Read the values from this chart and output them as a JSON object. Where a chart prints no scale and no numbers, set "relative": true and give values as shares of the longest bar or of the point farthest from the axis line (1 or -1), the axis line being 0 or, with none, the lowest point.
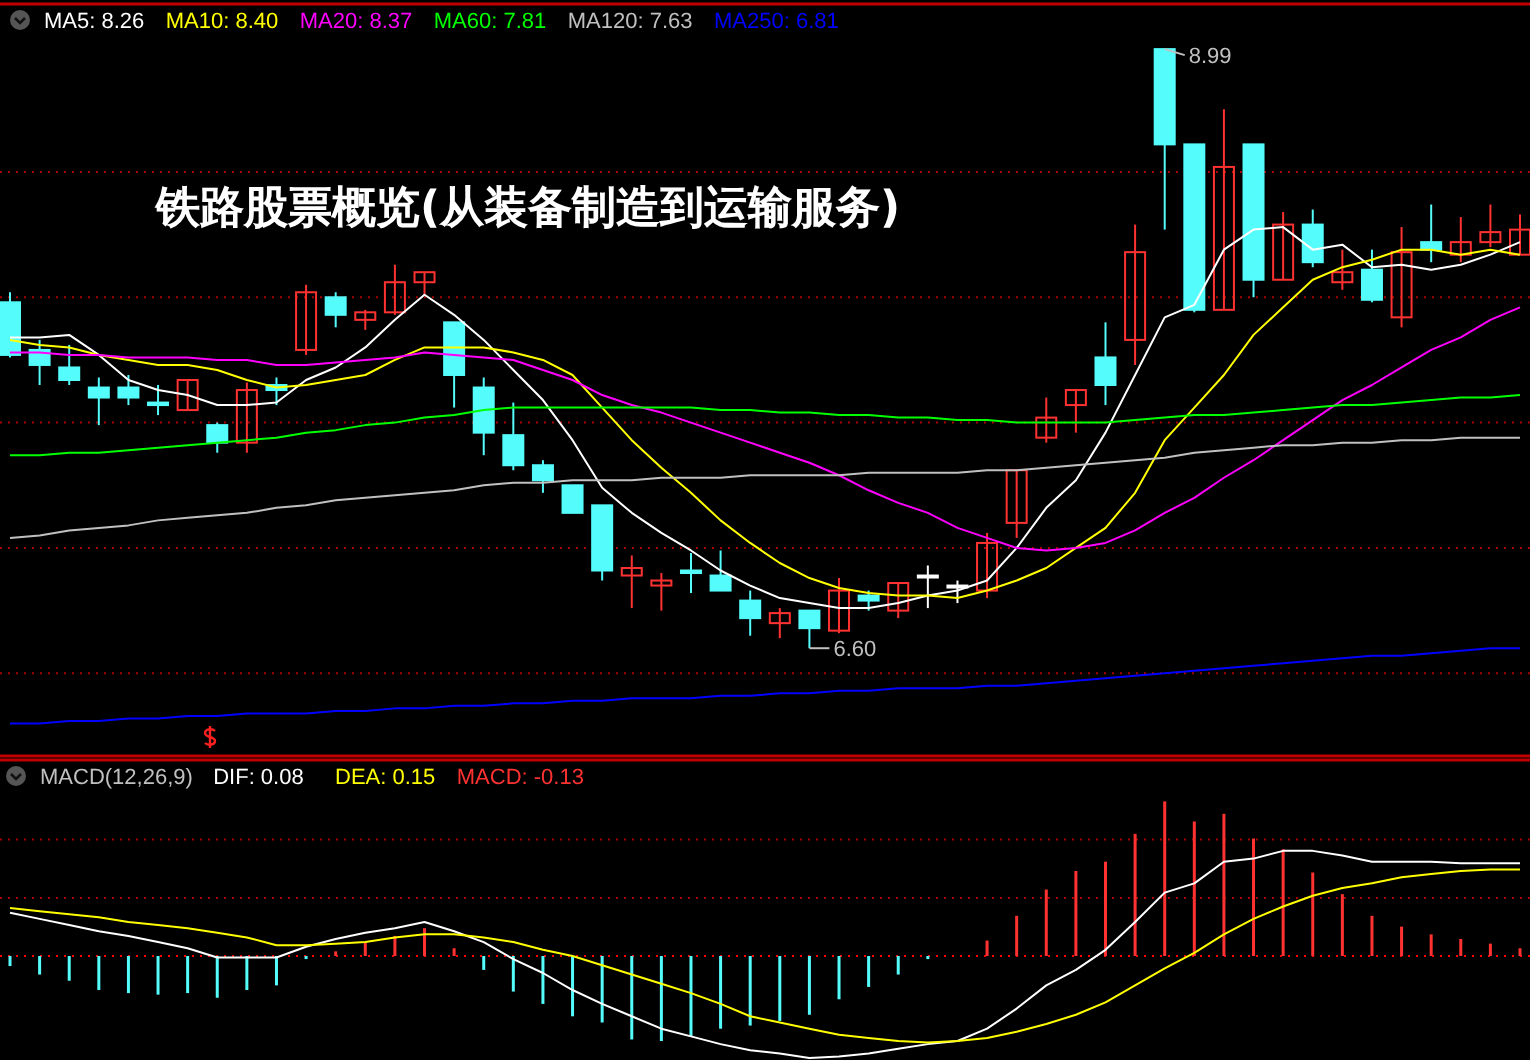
{
  "chart_data": [
    {
      "type": "candlestick",
      "title": "铁路股票概览(从装备制造到运输服务)",
      "categories": [
        null,
        null,
        null,
        null,
        null,
        null,
        null,
        null,
        null,
        null,
        null,
        null,
        null,
        null,
        null,
        null,
        null,
        null,
        null,
        null,
        null,
        null,
        null,
        null,
        null,
        null,
        null,
        null,
        null,
        null,
        null,
        null,
        null,
        null,
        null,
        null,
        null,
        null,
        null,
        null,
        null,
        null,
        null,
        null,
        null,
        null,
        null,
        null,
        null,
        null,
        null,
        null
      ],
      "ohlc": [
        [
          7.98,
          8.02,
          7.76,
          7.77
        ],
        [
          7.79,
          7.83,
          7.65,
          7.73
        ],
        [
          7.72,
          7.81,
          7.65,
          7.67
        ],
        [
          7.64,
          7.68,
          7.49,
          7.6
        ],
        [
          7.64,
          7.69,
          7.57,
          7.6
        ],
        [
          7.58,
          7.65,
          7.53,
          7.57
        ],
        [
          7.55,
          7.67,
          7.55,
          7.67
        ],
        [
          7.49,
          7.5,
          7.38,
          7.42
        ],
        [
          7.42,
          7.66,
          7.38,
          7.63
        ],
        [
          7.65,
          7.68,
          7.57,
          7.63
        ],
        [
          7.79,
          8.05,
          7.77,
          8.02
        ],
        [
          8.0,
          8.02,
          7.88,
          7.93
        ],
        [
          7.91,
          7.95,
          7.87,
          7.94
        ],
        [
          7.94,
          8.13,
          7.93,
          8.06
        ],
        [
          8.06,
          8.1,
          8.01,
          8.1
        ],
        [
          7.9,
          7.9,
          7.56,
          7.69
        ],
        [
          7.64,
          7.68,
          7.37,
          7.46
        ],
        [
          7.45,
          7.58,
          7.31,
          7.33
        ],
        [
          7.33,
          7.35,
          7.22,
          7.27
        ],
        [
          7.25,
          7.25,
          7.14,
          7.14
        ],
        [
          7.17,
          7.17,
          6.87,
          6.91
        ],
        [
          6.89,
          6.97,
          6.76,
          6.92
        ],
        [
          6.85,
          6.9,
          6.75,
          6.87
        ],
        [
          6.91,
          6.98,
          6.82,
          6.9
        ],
        [
          6.89,
          6.99,
          6.83,
          6.83
        ],
        [
          6.79,
          6.83,
          6.65,
          6.72
        ],
        [
          6.7,
          6.76,
          6.64,
          6.74
        ],
        [
          6.75,
          6.75,
          6.6,
          6.68
        ],
        [
          6.67,
          6.88,
          6.66,
          6.83
        ],
        [
          6.81,
          6.83,
          6.75,
          6.79
        ],
        [
          6.75,
          6.86,
          6.72,
          6.86
        ],
        [
          6.89,
          6.93,
          6.76,
          6.89
        ],
        [
          6.85,
          6.87,
          6.78,
          6.85
        ],
        [
          6.83,
          7.06,
          6.8,
          7.02
        ],
        [
          7.1,
          7.31,
          7.04,
          7.31
        ],
        [
          7.44,
          7.6,
          7.42,
          7.52
        ],
        [
          7.57,
          7.63,
          7.46,
          7.63
        ],
        [
          7.76,
          7.9,
          7.57,
          7.65
        ],
        [
          7.83,
          8.29,
          7.73,
          8.18
        ],
        [
          8.99,
          8.99,
          8.27,
          8.61
        ],
        [
          8.61,
          8.61,
          7.94,
          7.95
        ],
        [
          7.95,
          8.75,
          7.95,
          8.52
        ],
        [
          8.61,
          8.61,
          8.0,
          8.07
        ],
        [
          8.07,
          8.34,
          8.07,
          8.29
        ],
        [
          8.29,
          8.35,
          8.12,
          8.14
        ],
        [
          8.06,
          8.19,
          8.03,
          8.1
        ],
        [
          8.11,
          8.19,
          7.98,
          7.99
        ],
        [
          7.92,
          8.28,
          7.88,
          8.18
        ],
        [
          8.22,
          8.37,
          8.14,
          8.19
        ],
        [
          8.17,
          8.32,
          8.14,
          8.22
        ],
        [
          8.22,
          8.37,
          8.2,
          8.26
        ],
        [
          8.17,
          8.33,
          8.17,
          8.27
        ]
      ],
      "series": [
        {
          "name": "MA5: 8.26",
          "type": "line",
          "color": "#ffffff",
          "values": [
            7.84,
            7.84,
            7.85,
            7.77,
            7.67,
            7.63,
            7.61,
            7.57,
            7.57,
            7.58,
            7.67,
            7.72,
            7.8,
            7.91,
            8.01,
            7.93,
            7.83,
            7.71,
            7.59,
            7.43,
            7.24,
            7.14,
            7.06,
            6.99,
            6.91,
            6.85,
            6.8,
            6.78,
            6.76,
            6.76,
            6.78,
            6.81,
            6.83,
            6.87,
            7.0,
            7.16,
            7.27,
            7.46,
            7.69,
            7.92,
            7.97,
            8.19,
            8.27,
            8.28,
            8.19,
            8.21,
            8.12,
            8.13,
            8.11,
            8.13,
            8.17,
            8.22
          ]
        },
        {
          "name": "MA10: 8.40",
          "type": "line",
          "color": "#ffff00",
          "values": [
            7.83,
            7.81,
            7.8,
            7.77,
            7.75,
            7.73,
            7.73,
            7.71,
            7.67,
            7.64,
            7.65,
            7.67,
            7.69,
            7.75,
            7.8,
            7.8,
            7.8,
            7.78,
            7.75,
            7.69,
            7.56,
            7.43,
            7.32,
            7.22,
            7.11,
            7.02,
            6.94,
            6.88,
            6.84,
            6.82,
            6.81,
            6.81,
            6.8,
            6.83,
            6.87,
            6.92,
            7.0,
            7.08,
            7.22,
            7.43,
            7.56,
            7.69,
            7.85,
            7.96,
            8.07,
            8.12,
            8.15,
            8.19,
            8.19,
            8.17,
            8.19,
            8.17
          ]
        },
        {
          "name": "MA20: 8.37",
          "type": "line",
          "color": "#ff00ff",
          "values": [
            7.78,
            7.78,
            7.77,
            7.77,
            7.76,
            7.76,
            7.76,
            7.75,
            7.75,
            7.73,
            7.73,
            7.74,
            7.75,
            7.76,
            7.78,
            7.77,
            7.76,
            7.75,
            7.71,
            7.67,
            7.61,
            7.57,
            7.54,
            7.5,
            7.46,
            7.42,
            7.38,
            7.34,
            7.29,
            7.23,
            7.18,
            7.14,
            7.08,
            7.04,
            7.0,
            6.99,
            7.0,
            7.02,
            7.07,
            7.14,
            7.2,
            7.28,
            7.35,
            7.43,
            7.51,
            7.59,
            7.65,
            7.72,
            7.79,
            7.84,
            7.91,
            7.96
          ]
        },
        {
          "name": "MA60: 7.81",
          "type": "line",
          "color": "#00ff00",
          "values": [
            7.37,
            7.37,
            7.38,
            7.38,
            7.39,
            7.4,
            7.41,
            7.42,
            7.43,
            7.44,
            7.46,
            7.47,
            7.49,
            7.5,
            7.52,
            7.53,
            7.55,
            7.56,
            7.56,
            7.56,
            7.56,
            7.56,
            7.56,
            7.56,
            7.55,
            7.55,
            7.54,
            7.54,
            7.53,
            7.53,
            7.52,
            7.52,
            7.51,
            7.51,
            7.5,
            7.5,
            7.5,
            7.5,
            7.51,
            7.52,
            7.53,
            7.53,
            7.54,
            7.55,
            7.56,
            7.57,
            7.57,
            7.58,
            7.59,
            7.6,
            7.6,
            7.61
          ]
        },
        {
          "name": "MA120: 7.63",
          "type": "line",
          "color": "#c0c0c0",
          "values": [
            7.04,
            7.05,
            7.07,
            7.08,
            7.09,
            7.11,
            7.12,
            7.13,
            7.14,
            7.16,
            7.17,
            7.19,
            7.2,
            7.21,
            7.22,
            7.23,
            7.25,
            7.26,
            7.26,
            7.27,
            7.27,
            7.27,
            7.28,
            7.28,
            7.28,
            7.29,
            7.29,
            7.29,
            7.29,
            7.3,
            7.3,
            7.3,
            7.3,
            7.31,
            7.31,
            7.32,
            7.33,
            7.34,
            7.35,
            7.36,
            7.38,
            7.39,
            7.4,
            7.41,
            7.41,
            7.42,
            7.42,
            7.43,
            7.43,
            7.44,
            7.44,
            7.44
          ]
        },
        {
          "name": "MA250: 6.81",
          "type": "line",
          "color": "#0000ff",
          "values": [
            6.3,
            6.3,
            6.31,
            6.31,
            6.32,
            6.32,
            6.33,
            6.33,
            6.34,
            6.34,
            6.34,
            6.35,
            6.35,
            6.36,
            6.36,
            6.37,
            6.37,
            6.38,
            6.38,
            6.39,
            6.39,
            6.4,
            6.4,
            6.4,
            6.41,
            6.41,
            6.42,
            6.42,
            6.43,
            6.43,
            6.44,
            6.44,
            6.44,
            6.45,
            6.45,
            6.46,
            6.47,
            6.48,
            6.49,
            6.5,
            6.51,
            6.52,
            6.53,
            6.54,
            6.55,
            6.56,
            6.57,
            6.57,
            6.58,
            6.59,
            6.6,
            6.6
          ]
        }
      ],
      "ylim": [
        6.17,
        9.17
      ],
      "yticks": [
        {
          "value": 6.5,
          "label": null
        },
        {
          "value": 7,
          "label": null
        },
        {
          "value": 7.5,
          "label": null
        },
        {
          "value": 8,
          "label": null
        },
        {
          "value": 8.5,
          "label": null
        }
      ],
      "grid": "y",
      "legend": "top left",
      "annotations": [
        "8.99",
        "6.60"
      ]
    },
    {
      "type": "bar",
      "title": "MACD(12,26,9)",
      "relative": true,
      "legend": "top left",
      "categories": [
        null,
        null,
        null,
        null,
        null,
        null,
        null,
        null,
        null,
        null,
        null,
        null,
        null,
        null,
        null,
        null,
        null,
        null,
        null,
        null,
        null,
        null,
        null,
        null,
        null,
        null,
        null,
        null,
        null,
        null,
        null,
        null,
        null,
        null,
        null,
        null,
        null,
        null,
        null,
        null,
        null,
        null,
        null,
        null,
        null,
        null,
        null,
        null,
        null,
        null,
        null,
        null
      ],
      "series": [
        {
          "name": "DIF: 0.08",
          "type": "line",
          "color": "#ffffff",
          "values": [
            0.28,
            0.24,
            0.2,
            0.16,
            0.13,
            0.09,
            0.05,
            -0.01,
            -0.01,
            -0.01,
            0.06,
            0.11,
            0.15,
            0.18,
            0.22,
            0.16,
            0.09,
            -0.02,
            -0.11,
            -0.22,
            -0.31,
            -0.39,
            -0.47,
            -0.52,
            -0.57,
            -0.61,
            -0.63,
            -0.66,
            -0.65,
            -0.63,
            -0.6,
            -0.57,
            -0.55,
            -0.47,
            -0.34,
            -0.19,
            -0.09,
            0.04,
            0.22,
            0.41,
            0.47,
            0.61,
            0.63,
            0.68,
            0.68,
            0.65,
            0.61,
            0.61,
            0.61,
            0.6,
            0.6,
            0.6
          ]
        },
        {
          "name": "DEA: 0.15",
          "type": "line",
          "color": "#ffff00",
          "values": [
            0.31,
            0.29,
            0.27,
            0.25,
            0.22,
            0.2,
            0.18,
            0.15,
            0.12,
            0.07,
            0.07,
            0.08,
            0.09,
            0.12,
            0.14,
            0.14,
            0.12,
            0.09,
            0.04,
            0.0,
            -0.06,
            -0.12,
            -0.18,
            -0.24,
            -0.31,
            -0.39,
            -0.43,
            -0.47,
            -0.51,
            -0.53,
            -0.55,
            -0.56,
            -0.55,
            -0.53,
            -0.49,
            -0.44,
            -0.38,
            -0.3,
            -0.19,
            -0.08,
            0.02,
            0.14,
            0.24,
            0.32,
            0.39,
            0.44,
            0.47,
            0.51,
            0.53,
            0.55,
            0.56,
            0.56
          ]
        },
        {
          "name": "MACD: -0.13",
          "type": "bar",
          "colors": [
            "#54fcfc",
            "#54fcfc",
            "#54fcfc",
            "#54fcfc",
            "#54fcfc",
            "#54fcfc",
            "#54fcfc",
            "#54fcfc",
            "#54fcfc",
            "#54fcfc",
            "#54fcfc",
            "#ff3232",
            "#ff3232",
            "#ff3232",
            "#ff3232",
            "#ff3232",
            "#54fcfc",
            "#54fcfc",
            "#54fcfc",
            "#54fcfc",
            "#54fcfc",
            "#54fcfc",
            "#54fcfc",
            "#54fcfc",
            "#54fcfc",
            "#54fcfc",
            "#54fcfc",
            "#54fcfc",
            "#54fcfc",
            "#54fcfc",
            "#54fcfc",
            "#54fcfc",
            null,
            "#ff3232",
            "#ff3232",
            "#ff3232",
            "#ff3232",
            "#ff3232",
            "#ff3232",
            "#ff3232",
            "#ff3232",
            "#ff3232",
            "#ff3232",
            "#ff3232",
            "#ff3232",
            "#ff3232",
            "#ff3232",
            "#ff3232",
            "#ff3232",
            "#ff3232",
            "#ff3232",
            "#ff3232"
          ],
          "values": [
            -0.065,
            -0.12,
            -0.16,
            -0.22,
            -0.24,
            -0.25,
            -0.24,
            -0.27,
            -0.22,
            -0.19,
            -0.02,
            0.03,
            0.09,
            0.13,
            0.18,
            0.05,
            -0.09,
            -0.23,
            -0.31,
            -0.39,
            -0.43,
            -0.54,
            -0.55,
            -0.52,
            -0.47,
            -0.45,
            -0.42,
            -0.38,
            -0.28,
            -0.2,
            -0.12,
            -0.02,
            null,
            0.1,
            0.26,
            0.43,
            0.55,
            0.61,
            0.79,
            1.0,
            0.87,
            0.92,
            0.76,
            0.69,
            0.54,
            0.4,
            0.26,
            0.19,
            0.14,
            0.11,
            0.08,
            0.05
          ]
        }
      ],
      "ref_lines": [
        {
          "axis": "y",
          "value": 0,
          "color": "#ff0000",
          "line_style": "dotted"
        },
        {
          "axis": "y",
          "value": 0.375,
          "color": "#aa0000",
          "line_style": "dotted"
        },
        {
          "axis": "y",
          "value": 0.754,
          "color": "#aa0000",
          "line_style": "dotted"
        }
      ]
    }
  ]
}
